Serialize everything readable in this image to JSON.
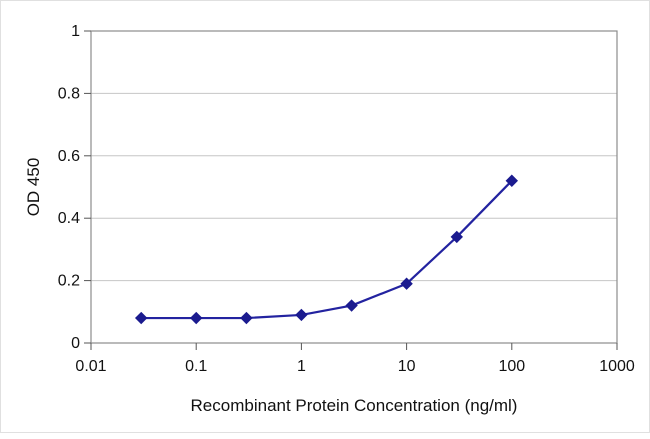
{
  "chart_data": {
    "type": "line",
    "title": "",
    "xlabel": "Recombinant Protein Concentration (ng/ml)",
    "ylabel": "OD 450",
    "x_scale": "log",
    "xlim": [
      0.01,
      1000
    ],
    "ylim": [
      0,
      1
    ],
    "x_ticks": [
      "0.01",
      "0.1",
      "1",
      "10",
      "100",
      "1000"
    ],
    "y_ticks": [
      "0",
      "0.2",
      "0.4",
      "0.6",
      "0.8",
      "1"
    ],
    "grid": "horizontal",
    "legend": "none",
    "series": [
      {
        "name": "OD 450",
        "x": [
          0.03,
          0.1,
          0.3,
          1,
          3,
          10,
          30,
          100
        ],
        "y": [
          0.08,
          0.08,
          0.08,
          0.09,
          0.12,
          0.19,
          0.34,
          0.52
        ],
        "marker": "diamond",
        "line_color": "#2323a0",
        "marker_color": "#1b1b8f"
      }
    ],
    "colors": {
      "plot_border": "#8c8c8c",
      "gridline": "#c6c6c6",
      "tick": "#555555",
      "background": "#ffffff",
      "text": "#111111"
    }
  }
}
